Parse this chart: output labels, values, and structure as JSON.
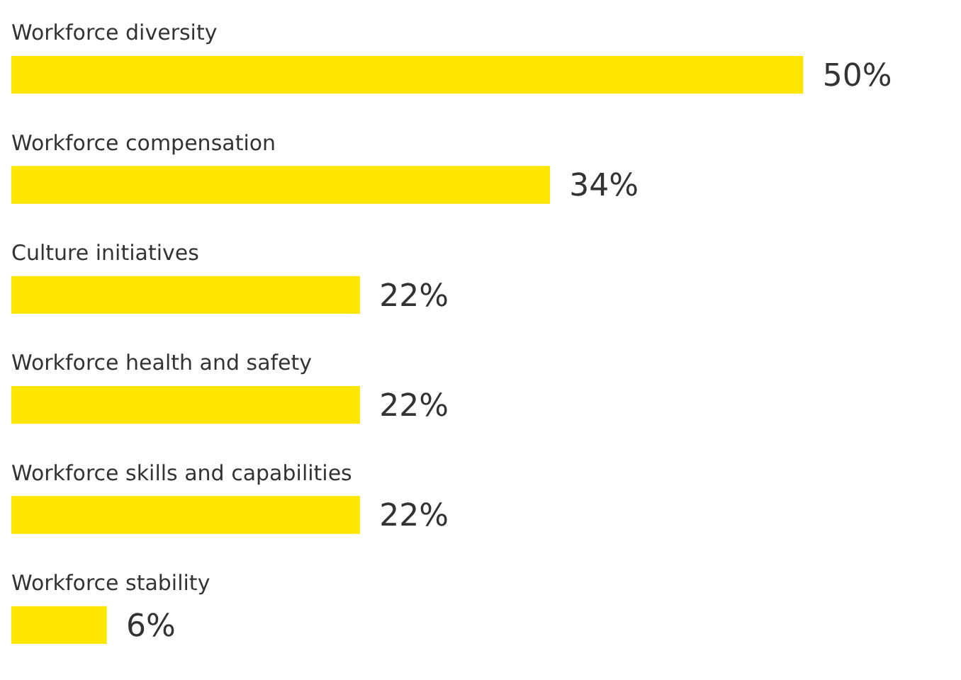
{
  "chart_data": {
    "type": "bar",
    "orientation": "horizontal",
    "categories": [
      "Workforce diversity",
      "Workforce compensation",
      "Culture initiatives",
      "Workforce health and safety",
      "Workforce skills and capabilities",
      "Workforce stability"
    ],
    "values": [
      50,
      34,
      22,
      22,
      22,
      6
    ],
    "value_labels": [
      "50%",
      "34%",
      "22%",
      "22%",
      "22%",
      "6%"
    ],
    "color": "#ffe600",
    "data_labels": true
  }
}
